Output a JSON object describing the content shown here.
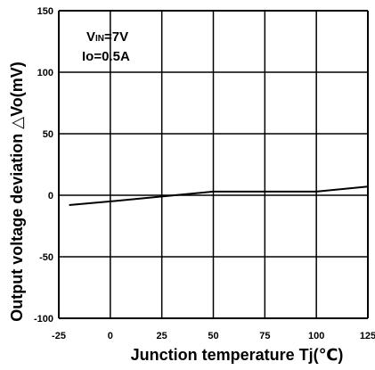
{
  "chart_data": {
    "type": "line",
    "xlabel": "Junction temperature Tj(℃)",
    "ylabel": "Output voltage deviation △Vo(mV)",
    "xlim": [
      -25,
      125
    ],
    "ylim": [
      -100,
      150
    ],
    "x_ticks": [
      "-25",
      "0",
      "25",
      "50",
      "75",
      "100",
      "125"
    ],
    "y_ticks": [
      "-100",
      "-50",
      "0",
      "50",
      "100",
      "150"
    ],
    "grid": true,
    "annotations": [
      "VIN=7V",
      "Io=0.5A"
    ],
    "series": [
      {
        "x": [
          -20,
          0,
          25,
          50,
          75,
          100,
          125
        ],
        "y": [
          -8,
          -5,
          -1,
          3,
          3,
          3,
          7
        ]
      }
    ]
  }
}
